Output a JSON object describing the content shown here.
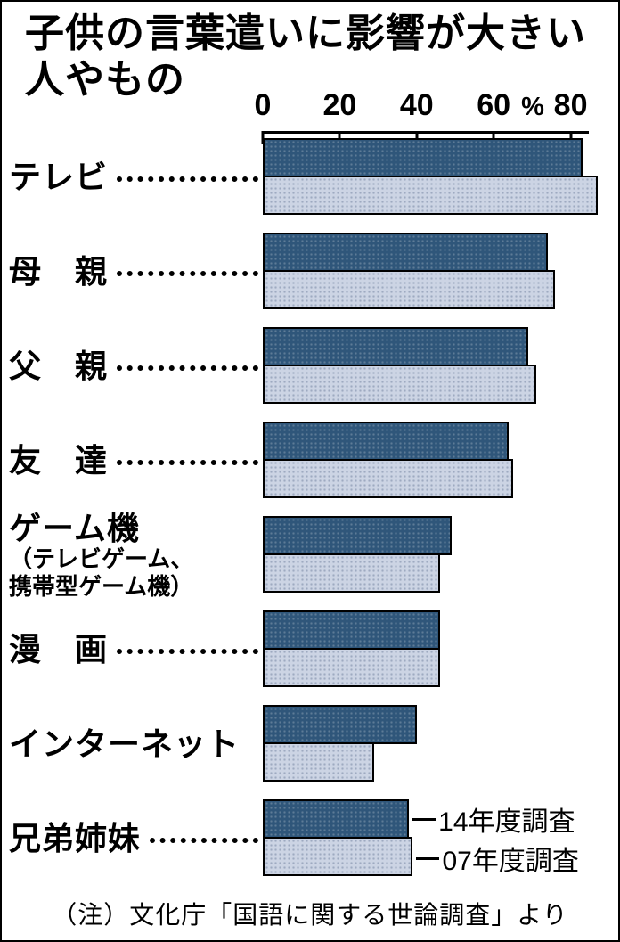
{
  "title_lines": {
    "line1": "子供の言葉遣いに影響が大きい",
    "line2": "人やもの"
  },
  "note": "（注）文化庁「国語に関する世論調査」より",
  "colors": {
    "dark_bar": "#2f567a",
    "light_bar": "#ccd4e4",
    "axis": "#000000",
    "background": "#ffffff"
  },
  "chart_data": {
    "type": "bar",
    "orientation": "horizontal",
    "title": "子供の言葉遣いに影響が大きい人やもの",
    "xlabel": "",
    "ylabel": "",
    "unit": "%",
    "axis": {
      "ticks": [
        0,
        20,
        40,
        60,
        80
      ],
      "unit_label": "%",
      "max": 90,
      "grid": false
    },
    "legend_position": "bottom-right",
    "categories": [
      {
        "label": "テレビ",
        "leader": true
      },
      {
        "label": "母　親",
        "leader": true
      },
      {
        "label": "父　親",
        "leader": true
      },
      {
        "label": "友　達",
        "leader": true
      },
      {
        "label": "ゲーム機",
        "sublabel_lines": [
          "（テレビゲーム、",
          "携帯型ゲーム機）"
        ],
        "leader": false
      },
      {
        "label": "漫　画",
        "leader": true
      },
      {
        "label": "インターネット",
        "leader": false
      },
      {
        "label": "兄弟姉妹",
        "leader": true
      }
    ],
    "series": [
      {
        "name": "14年度調査",
        "values": [
          83,
          74,
          69,
          64,
          49,
          46,
          40,
          38
        ]
      },
      {
        "name": "07年度調査",
        "values": [
          87,
          76,
          71,
          65,
          46,
          46,
          29,
          39
        ]
      }
    ]
  }
}
